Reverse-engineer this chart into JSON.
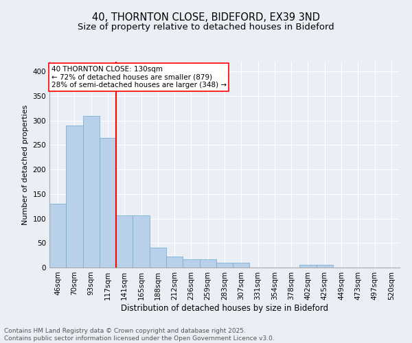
{
  "title1": "40, THORNTON CLOSE, BIDEFORD, EX39 3ND",
  "title2": "Size of property relative to detached houses in Bideford",
  "xlabel": "Distribution of detached houses by size in Bideford",
  "ylabel": "Number of detached properties",
  "categories": [
    "46sqm",
    "70sqm",
    "93sqm",
    "117sqm",
    "141sqm",
    "165sqm",
    "188sqm",
    "212sqm",
    "236sqm",
    "259sqm",
    "283sqm",
    "307sqm",
    "331sqm",
    "354sqm",
    "378sqm",
    "402sqm",
    "425sqm",
    "449sqm",
    "473sqm",
    "497sqm",
    "520sqm"
  ],
  "values": [
    130,
    290,
    310,
    265,
    107,
    107,
    40,
    22,
    17,
    17,
    10,
    10,
    0,
    0,
    0,
    5,
    5,
    0,
    0,
    0,
    0
  ],
  "bar_color": "#b8d0ea",
  "bar_edge_color": "#7aadd4",
  "vline_x_index": 3.5,
  "vline_color": "red",
  "annotation_line1": "40 THORNTON CLOSE: 130sqm",
  "annotation_line2": "← 72% of detached houses are smaller (879)",
  "annotation_line3": "28% of semi-detached houses are larger (348) →",
  "annotation_box_color": "white",
  "annotation_box_edge": "red",
  "ylim": [
    0,
    420
  ],
  "yticks": [
    0,
    50,
    100,
    150,
    200,
    250,
    300,
    350,
    400
  ],
  "bg_color": "#eaeef5",
  "grid_color": "#ffffff",
  "footer_text": "Contains HM Land Registry data © Crown copyright and database right 2025.\nContains public sector information licensed under the Open Government Licence v3.0.",
  "title1_fontsize": 10.5,
  "title2_fontsize": 9.5,
  "xlabel_fontsize": 8.5,
  "ylabel_fontsize": 8,
  "tick_fontsize": 7.5,
  "annotation_fontsize": 7.5,
  "footer_fontsize": 6.5
}
